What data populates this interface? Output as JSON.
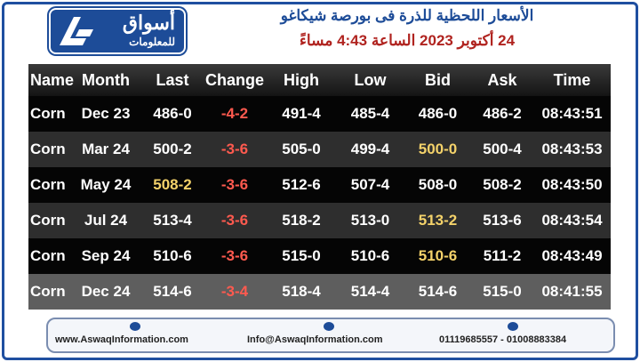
{
  "header": {
    "logo_name": "أسواق",
    "logo_sub": "للمعلومات",
    "title": "الأسعار اللحظية للذرة فى بورصة شيكاغو",
    "subtitle": "24 أكتوبر 2023 الساعة 4:43 مساءً"
  },
  "table": {
    "columns": [
      "Name",
      "Month",
      "Last",
      "Change",
      "High",
      "Low",
      "Bid",
      "Ask",
      "Time"
    ],
    "rows": [
      [
        "Corn",
        "Dec 23",
        "486-0",
        "-4-2",
        "491-4",
        "485-4",
        "486-0",
        "486-2",
        "08:43:51"
      ],
      [
        "Corn",
        "Mar 24",
        "500-2",
        "-3-6",
        "505-0",
        "499-4",
        "500-0",
        "500-4",
        "08:43:53"
      ],
      [
        "Corn",
        "May 24",
        "508-2",
        "-3-6",
        "512-6",
        "507-4",
        "508-0",
        "508-2",
        "08:43:50"
      ],
      [
        "Corn",
        "Jul 24",
        "513-4",
        "-3-6",
        "518-2",
        "513-0",
        "513-2",
        "513-6",
        "08:43:54"
      ],
      [
        "Corn",
        "Sep 24",
        "510-6",
        "-3-6",
        "515-0",
        "510-6",
        "510-6",
        "511-2",
        "08:43:49"
      ],
      [
        "Corn",
        "Dec 24",
        "514-6",
        "-3-4",
        "518-4",
        "514-4",
        "514-6",
        "515-0",
        "08:41:55"
      ]
    ]
  },
  "footer": {
    "website": "www.AswaqInformation.com",
    "email": "Info@AswaqInformation.com",
    "phones": "01119685557 - 01008883384"
  }
}
